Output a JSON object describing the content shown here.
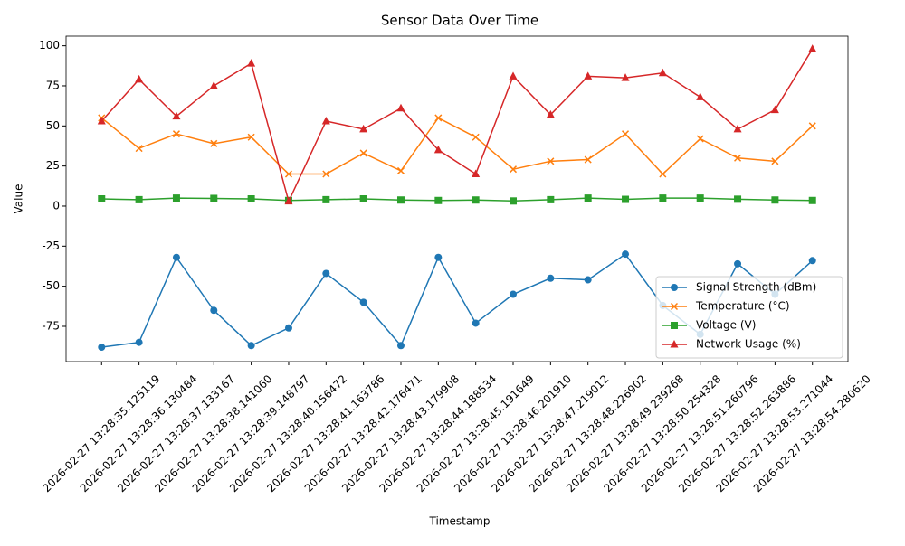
{
  "chart_data": {
    "type": "line",
    "title": "Sensor Data Over Time",
    "x_label": "Timestamp",
    "y_label": "Value",
    "categories": [
      "2026-02-27 13:28:35.125119",
      "2026-02-27 13:28:36.130484",
      "2026-02-27 13:28:37.133167",
      "2026-02-27 13:28:38.141060",
      "2026-02-27 13:28:39.148797",
      "2026-02-27 13:28:40.156472",
      "2026-02-27 13:28:41.163786",
      "2026-02-27 13:28:42.176471",
      "2026-02-27 13:28:43.179908",
      "2026-02-27 13:28:44.188534",
      "2026-02-27 13:28:45.191649",
      "2026-02-27 13:28:46.201910",
      "2026-02-27 13:28:47.219012",
      "2026-02-27 13:28:48.226902",
      "2026-02-27 13:28:49.239268",
      "2026-02-27 13:28:50.254328",
      "2026-02-27 13:28:51.260796",
      "2026-02-27 13:28:52.263886",
      "2026-02-27 13:28:53.271044",
      "2026-02-27 13:28:54.280620"
    ],
    "series": [
      {
        "name": "Signal Strength (dBm)",
        "color": "#1f77b4",
        "marker": "circle",
        "values": [
          -88,
          -85,
          -32,
          -65,
          -87,
          -76,
          -42,
          -60,
          -87,
          -32,
          -73,
          -55,
          -45,
          -46,
          -30,
          -62,
          -80,
          -36,
          -55,
          -34
        ]
      },
      {
        "name": "Temperature (°C)",
        "color": "#ff7f0e",
        "marker": "x",
        "values": [
          55,
          36,
          45,
          39,
          43,
          20,
          20,
          33,
          22,
          55,
          43,
          23,
          28,
          29,
          45,
          20,
          42,
          30,
          28,
          50
        ]
      },
      {
        "name": "Voltage (V)",
        "color": "#2ca02c",
        "marker": "square",
        "values": [
          4.5,
          4,
          5,
          4.8,
          4.5,
          3.5,
          4,
          4.5,
          3.8,
          3.5,
          3.8,
          3.2,
          4,
          5,
          4.2,
          5,
          5,
          4.3,
          3.8,
          3.5
        ]
      },
      {
        "name": "Network Usage (%)",
        "color": "#d62728",
        "marker": "triangle",
        "values": [
          53,
          79,
          56,
          75,
          89,
          3,
          53,
          48,
          61,
          35,
          20,
          81,
          57,
          81,
          80,
          83,
          68,
          48,
          60,
          98
        ]
      }
    ],
    "ylim": [
      -97,
      106
    ],
    "yticks": [
      -75,
      -50,
      -25,
      0,
      25,
      50,
      75,
      100
    ],
    "grid": false,
    "legend": "lower right"
  }
}
